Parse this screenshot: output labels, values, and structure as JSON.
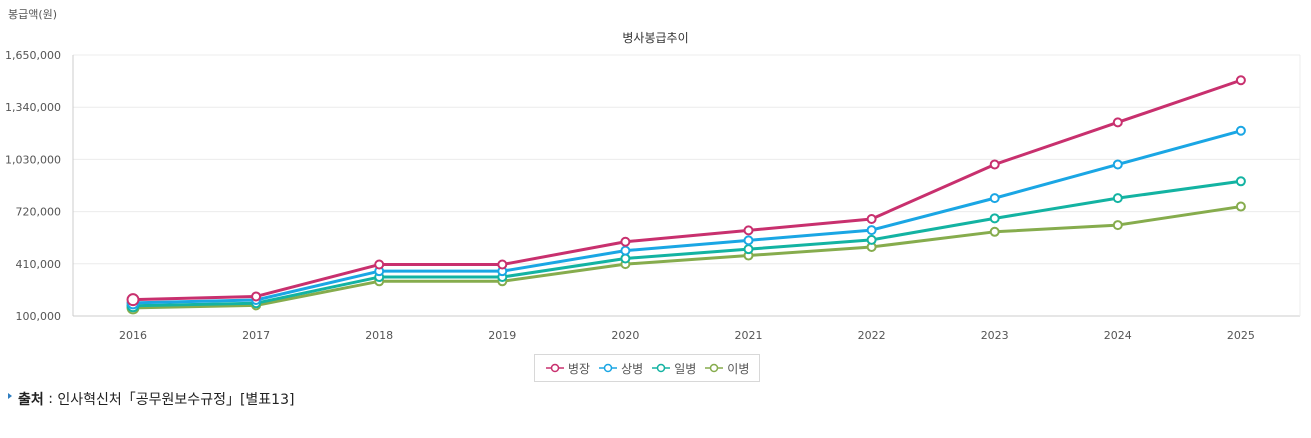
{
  "chart_data": {
    "type": "line",
    "title": "병사봉급추이",
    "ylabel": "봉급액(원)",
    "xlabel": "",
    "categories": [
      "2016",
      "2017",
      "2018",
      "2019",
      "2020",
      "2021",
      "2022",
      "2023",
      "2024",
      "2025"
    ],
    "ylim": [
      100000,
      1650000
    ],
    "yticks": [
      "100,000",
      "410,000",
      "720,000",
      "1,030,000",
      "1,340,000",
      "1,650,000"
    ],
    "ytick_values": [
      100000,
      410000,
      720000,
      1030000,
      1340000,
      1650000
    ],
    "grid": true,
    "legend_position": "bottom-center",
    "series": [
      {
        "name": "병장",
        "color": "#c8306e",
        "values": [
          197000,
          216000,
          405700,
          405700,
          540900,
          608500,
          676100,
          1000000,
          1250000,
          1500000
        ]
      },
      {
        "name": "상병",
        "color": "#1aa6e4",
        "values": [
          178000,
          195000,
          366200,
          366200,
          488200,
          549200,
          610200,
          800000,
          1000000,
          1200000
        ]
      },
      {
        "name": "일병",
        "color": "#13b3a2",
        "values": [
          161000,
          176000,
          331300,
          331300,
          441700,
          496900,
          552100,
          680000,
          800000,
          900000
        ]
      },
      {
        "name": "이병",
        "color": "#86ac4d",
        "values": [
          148000,
          163000,
          306100,
          306100,
          408100,
          459100,
          510100,
          600000,
          640000,
          750000
        ]
      }
    ]
  },
  "source": {
    "label": "출처",
    "separator": " : ",
    "text": "인사혁신처「공무원보수규정」[별표13]"
  }
}
